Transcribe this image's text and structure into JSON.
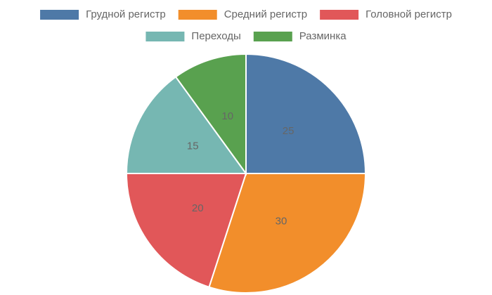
{
  "chart_data": {
    "type": "pie",
    "categories": [
      "Грудной регистр",
      "Средний регистр",
      "Головной регистр",
      "Переходы",
      "Разминка"
    ],
    "values": [
      25,
      30,
      20,
      15,
      10
    ],
    "colors": [
      "#4e79a7",
      "#f28e2b",
      "#e15759",
      "#76b7b2",
      "#59a14f"
    ],
    "legend": "top"
  }
}
